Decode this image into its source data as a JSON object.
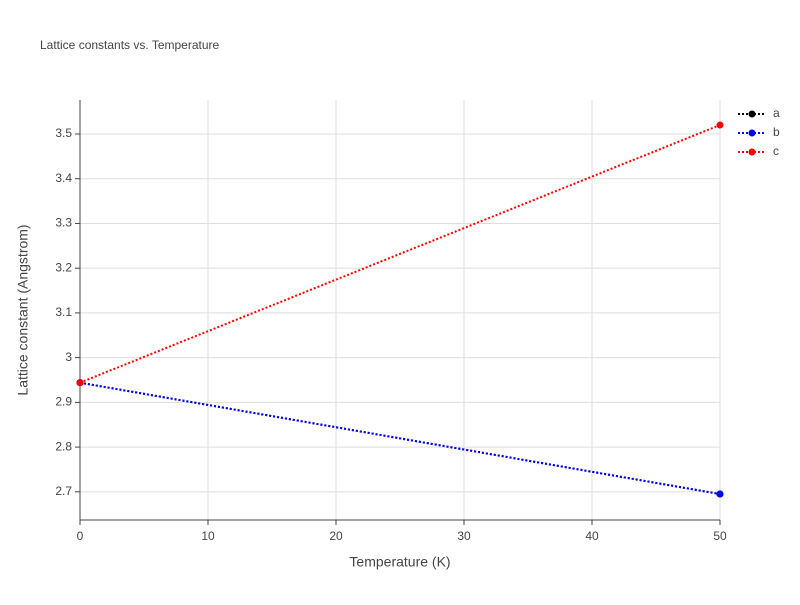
{
  "chart_data": {
    "type": "line",
    "title": "Lattice constants vs. Temperature",
    "x_label": "Temperature (K)",
    "y_label": "Lattice constant (Angstrom)",
    "x": [
      0,
      50
    ],
    "series": [
      {
        "name": "a",
        "color": "#000000",
        "values": [
          2.944,
          2.695
        ]
      },
      {
        "name": "b",
        "color": "#0000ff",
        "values": [
          2.944,
          2.695
        ]
      },
      {
        "name": "c",
        "color": "#ff0000",
        "values": [
          2.944,
          3.52
        ]
      }
    ],
    "xlim": [
      0,
      50
    ],
    "xticks": [
      0,
      10,
      20,
      30,
      40,
      50
    ],
    "ylim": [
      2.637,
      3.576
    ],
    "yticks": [
      2.7,
      2.8,
      2.9,
      3,
      3.1,
      3.2,
      3.3,
      3.4,
      3.5
    ],
    "grid": true,
    "line_style": "dotted",
    "legend": "top-right"
  }
}
